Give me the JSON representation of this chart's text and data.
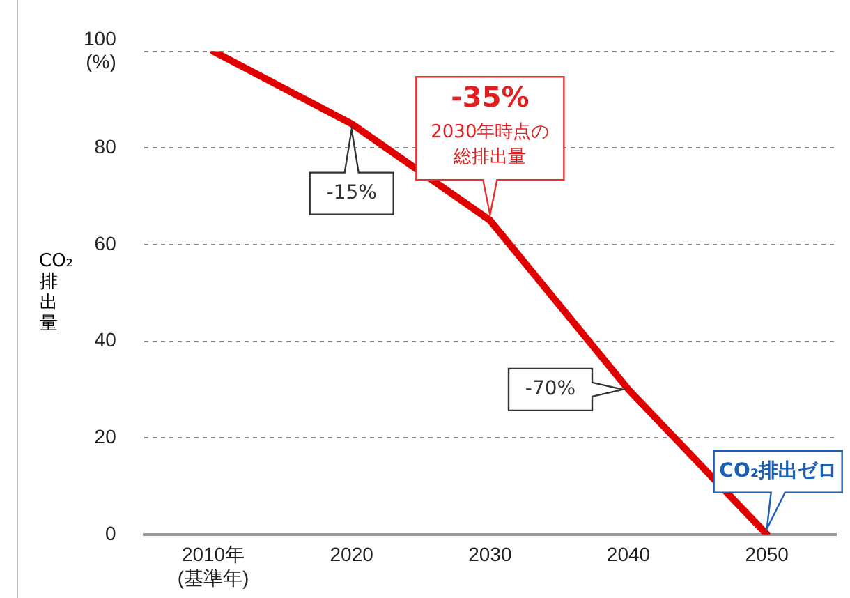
{
  "chart_data": {
    "type": "line",
    "ylabel": "CO₂排出量",
    "categories": [
      "2010年\n(基準年)",
      "2020",
      "2030",
      "2040",
      "2050"
    ],
    "series": [
      {
        "color": "#e00000",
        "values": [
          100,
          85,
          65,
          30,
          0
        ]
      }
    ],
    "ylim": [
      0,
      100
    ],
    "yticks": [
      0,
      20,
      40,
      60,
      80,
      {
        "value": 100,
        "label": "100\n(%)"
      }
    ],
    "grid": "y",
    "legend": false,
    "marker": "none",
    "line_style": "solid",
    "annotations": [
      {
        "text": "-15%",
        "x": "2020",
        "y": 85
      },
      {
        "text": "-35%\n2030年時点の総排出量",
        "x": "2030",
        "y": 65
      },
      {
        "text": "-70%",
        "x": "2040",
        "y": 30
      },
      {
        "text": "CO₂排出ゼロ",
        "x": "2050",
        "y": 0
      }
    ]
  }
}
